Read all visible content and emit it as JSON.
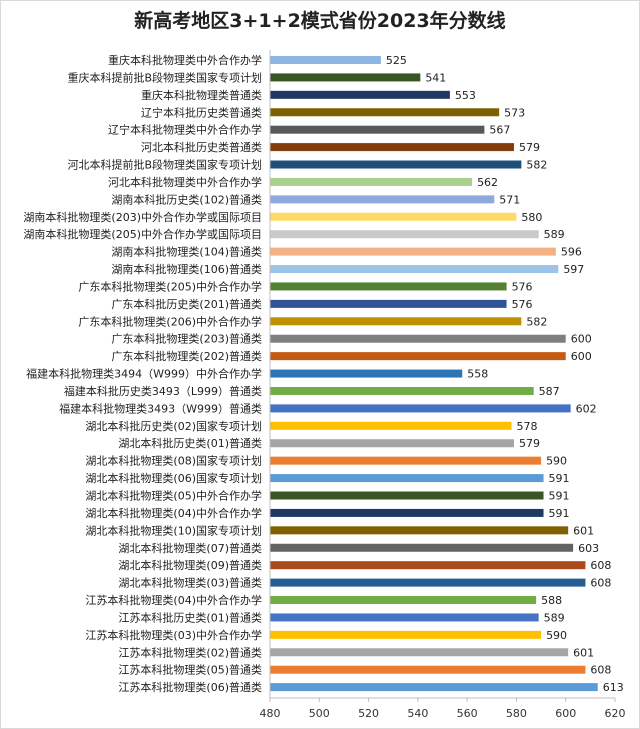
{
  "chart_data": {
    "type": "bar",
    "orientation": "horizontal",
    "title": "新高考地区3+1+2模式省份2023年分数线",
    "xlim": [
      480,
      620
    ],
    "xticks": [
      480,
      500,
      520,
      540,
      560,
      580,
      600,
      620
    ],
    "grid": false,
    "legend": "none",
    "categories": [
      "重庆本科批物理类中外合作办学",
      "重庆本科提前批B段物理类国家专项计划",
      "重庆本科批物理类普通类",
      "辽宁本科批历史类普通类",
      "辽宁本科批物理类中外合作办学",
      "河北本科批历史类普通类",
      "河北本科提前批B段物理类国家专项计划",
      "河北本科批物理类中外合作办学",
      "湖南本科批历史类(102)普通类",
      "湖南本科批物理类(203)中外合作办学或国际项目",
      "湖南本科批物理类(205)中外合作办学或国际项目",
      "湖南本科批物理类(104)普通类",
      "湖南本科批物理类(106)普通类",
      "广东本科批物理类(205)中外合作办学",
      "广东本科批历史类(201)普通类",
      "广东本科批物理类(206)中外合作办学",
      "广东本科批物理类(203)普通类",
      "广东本科批物理类(202)普通类",
      "福建本科批物理类3494（W999）中外合作办学",
      "福建本科批历史类3493（L999）普通类",
      "福建本科批物理类3493（W999）普通类",
      "湖北本科批历史类(02)国家专项计划",
      "湖北本科批历史类(01)普通类",
      "湖北本科批物理类(08)国家专项计划",
      "湖北本科批物理类(06)国家专项计划",
      "湖北本科批物理类(05)中外合作办学",
      "湖北本科批物理类(04)中外合作办学",
      "湖北本科批物理类(10)国家专项计划",
      "湖北本科批物理类(07)普通类",
      "湖北本科批物理类(09)普通类",
      "湖北本科批物理类(03)普通类",
      "江苏本科批物理类(04)中外合作办学",
      "江苏本科批历史类(01)普通类",
      "江苏本科批物理类(03)中外合作办学",
      "江苏本科批物理类(02)普通类",
      "江苏本科批物理类(05)普通类",
      "江苏本科批物理类(06)普通类"
    ],
    "values": [
      525,
      541,
      553,
      573,
      567,
      579,
      582,
      562,
      571,
      580,
      589,
      596,
      597,
      576,
      576,
      582,
      600,
      600,
      558,
      587,
      602,
      578,
      579,
      590,
      591,
      591,
      591,
      601,
      603,
      608,
      608,
      588,
      589,
      590,
      601,
      608,
      613
    ],
    "colors": [
      "#8db4e2",
      "#375623",
      "#1f3864",
      "#7f6000",
      "#595959",
      "#843c0c",
      "#1f4e79",
      "#a9d08e",
      "#8ea9db",
      "#ffd966",
      "#c9c9c9",
      "#f4b183",
      "#9dc3e6",
      "#548235",
      "#2f5597",
      "#bf9000",
      "#7f7f7f",
      "#c55a11",
      "#2e75b6",
      "#70ad47",
      "#4472c4",
      "#ffc000",
      "#a5a5a5",
      "#ed7d31",
      "#5b9bd5",
      "#375623",
      "#203864",
      "#806000",
      "#636363",
      "#a94b1b",
      "#255e91",
      "#70ad47",
      "#4472c4",
      "#ffc000",
      "#a5a5a5",
      "#ed7d31",
      "#5b9bd5"
    ]
  }
}
